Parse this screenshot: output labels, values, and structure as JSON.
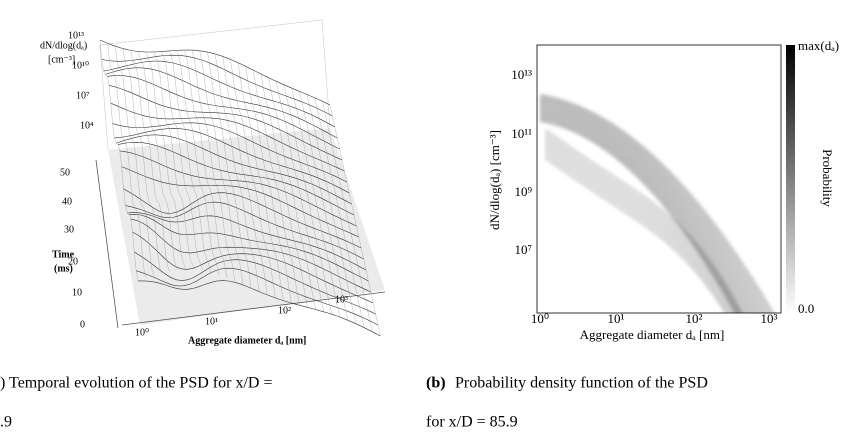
{
  "panel_a": {
    "z_label": "dN/dlog(dₐ)",
    "z_unit": "[cm⁻³]",
    "z_ticks": [
      "10¹³",
      "10¹⁰",
      "10⁷",
      "10⁴"
    ],
    "time_label": "Time",
    "time_unit": "(ms)",
    "time_ticks": [
      "50",
      "40",
      "30",
      "20",
      "10",
      "0"
    ],
    "x_ticks": [
      "10⁰",
      "10¹",
      "10²",
      "10³"
    ],
    "x_label": "Aggregate diameter dₐ [nm]"
  },
  "panel_b": {
    "y_label": "dN/dlog(dₐ) [cm⁻³]",
    "y_ticks": [
      "10¹³",
      "10¹¹",
      "10⁹",
      "10⁷"
    ],
    "x_ticks": [
      "10⁰",
      "10¹",
      "10²",
      "10³"
    ],
    "x_label": "Aggregate diameter dₐ [nm]",
    "colorbar_max": "max(dₐ)",
    "colorbar_min": "0.0",
    "colorbar_label": "Probability"
  },
  "captions": {
    "a_line1": ") Temporal evolution of the PSD for x/D =",
    "a_line2": ".9",
    "b_label": "(b)",
    "b_line1": "Probability density function of the PSD",
    "b_line2": "for x/D = 85.9"
  }
}
